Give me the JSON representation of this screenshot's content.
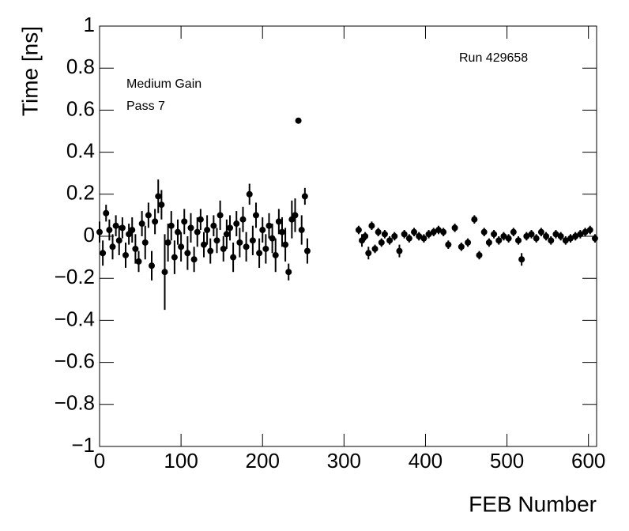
{
  "chart_data": {
    "type": "scatter",
    "xlabel": "FEB Number",
    "ylabel": "Time [ns]",
    "annotations": [
      "Medium Gain",
      "Pass 7",
      "Run 429658"
    ],
    "color": "#000000",
    "x": [
      0,
      4,
      8,
      12,
      16,
      20,
      24,
      28,
      32,
      36,
      40,
      44,
      48,
      52,
      56,
      60,
      64,
      68,
      72,
      76,
      80,
      84,
      88,
      92,
      96,
      100,
      104,
      108,
      112,
      116,
      120,
      124,
      128,
      132,
      136,
      140,
      144,
      148,
      152,
      156,
      160,
      164,
      168,
      172,
      176,
      180,
      184,
      188,
      192,
      196,
      200,
      204,
      208,
      212,
      216,
      220,
      224,
      228,
      232,
      236,
      240,
      244,
      248,
      252,
      255,
      318,
      322,
      326,
      330,
      334,
      338,
      342,
      346,
      350,
      356,
      362,
      368,
      374,
      380,
      386,
      392,
      398,
      404,
      410,
      416,
      422,
      428,
      436,
      444,
      452,
      460,
      466,
      472,
      478,
      484,
      490,
      496,
      502,
      508,
      514,
      518,
      524,
      530,
      536,
      542,
      548,
      554,
      560,
      566,
      572,
      578,
      584,
      590,
      596,
      602,
      608
    ],
    "values": [
      0.02,
      -0.08,
      0.11,
      0.03,
      -0.05,
      0.05,
      -0.02,
      0.04,
      -0.09,
      0.01,
      0.03,
      -0.06,
      -0.12,
      0.06,
      -0.03,
      0.1,
      -0.14,
      0.07,
      0.19,
      0.15,
      -0.17,
      -0.03,
      0.05,
      -0.1,
      0.02,
      -0.05,
      0.07,
      -0.08,
      0.04,
      -0.11,
      0.02,
      0.08,
      -0.04,
      0.03,
      -0.07,
      0.05,
      -0.02,
      0.1,
      -0.06,
      0.01,
      0.04,
      -0.1,
      0.06,
      -0.03,
      0.08,
      -0.05,
      0.2,
      -0.02,
      0.1,
      -0.08,
      0.03,
      -0.06,
      0.05,
      -0.01,
      -0.09,
      0.07,
      0.02,
      -0.04,
      -0.17,
      0.08,
      0.1,
      0.55,
      0.03,
      0.19,
      -0.07,
      0.03,
      -0.02,
      0.0,
      -0.08,
      0.05,
      -0.06,
      0.02,
      -0.03,
      0.01,
      -0.02,
      0.0,
      -0.07,
      0.01,
      -0.01,
      0.02,
      0.0,
      -0.01,
      0.01,
      0.02,
      0.03,
      0.02,
      -0.04,
      0.04,
      -0.05,
      -0.03,
      0.08,
      -0.09,
      0.02,
      -0.03,
      0.01,
      -0.02,
      0.0,
      -0.01,
      0.02,
      -0.02,
      -0.11,
      0.0,
      0.01,
      -0.01,
      0.02,
      0.0,
      -0.02,
      0.01,
      0.0,
      -0.02,
      -0.01,
      0.0,
      0.01,
      0.02,
      0.03,
      -0.01
    ],
    "errors": [
      0.05,
      0.06,
      0.04,
      0.05,
      0.06,
      0.05,
      0.07,
      0.05,
      0.06,
      0.05,
      0.06,
      0.07,
      0.05,
      0.06,
      0.08,
      0.06,
      0.07,
      0.06,
      0.08,
      0.07,
      0.18,
      0.09,
      0.07,
      0.08,
      0.06,
      0.07,
      0.06,
      0.08,
      0.07,
      0.06,
      0.07,
      0.05,
      0.06,
      0.07,
      0.06,
      0.05,
      0.06,
      0.07,
      0.06,
      0.07,
      0.06,
      0.07,
      0.06,
      0.07,
      0.06,
      0.07,
      0.05,
      0.07,
      0.06,
      0.07,
      0.06,
      0.07,
      0.06,
      0.07,
      0.08,
      0.06,
      0.07,
      0.08,
      0.04,
      0.09,
      0.08,
      0.01,
      0.07,
      0.04,
      0.06,
      0.02,
      0.03,
      0.02,
      0.03,
      0.02,
      0.02,
      0.02,
      0.02,
      0.02,
      0.02,
      0.02,
      0.03,
      0.02,
      0.02,
      0.02,
      0.02,
      0.02,
      0.02,
      0.02,
      0.02,
      0.02,
      0.02,
      0.02,
      0.02,
      0.02,
      0.02,
      0.02,
      0.02,
      0.02,
      0.02,
      0.02,
      0.02,
      0.02,
      0.02,
      0.02,
      0.03,
      0.02,
      0.02,
      0.02,
      0.02,
      0.02,
      0.02,
      0.02,
      0.02,
      0.02,
      0.02,
      0.02,
      0.02,
      0.02,
      0.02,
      0.02
    ],
    "xlim": [
      0,
      610
    ],
    "ylim": [
      -1,
      1
    ],
    "xticks": [
      0,
      100,
      200,
      300,
      400,
      500,
      600
    ],
    "yticks": [
      {
        "value": -1,
        "label": "−1"
      },
      {
        "value": -0.8,
        "label": "−0.8"
      },
      {
        "value": -0.6,
        "label": "−0.6"
      },
      {
        "value": -0.4,
        "label": "−0.4"
      },
      {
        "value": -0.2,
        "label": "−0.2"
      },
      0,
      0.2,
      0.4,
      0.6,
      0.8,
      1
    ]
  }
}
